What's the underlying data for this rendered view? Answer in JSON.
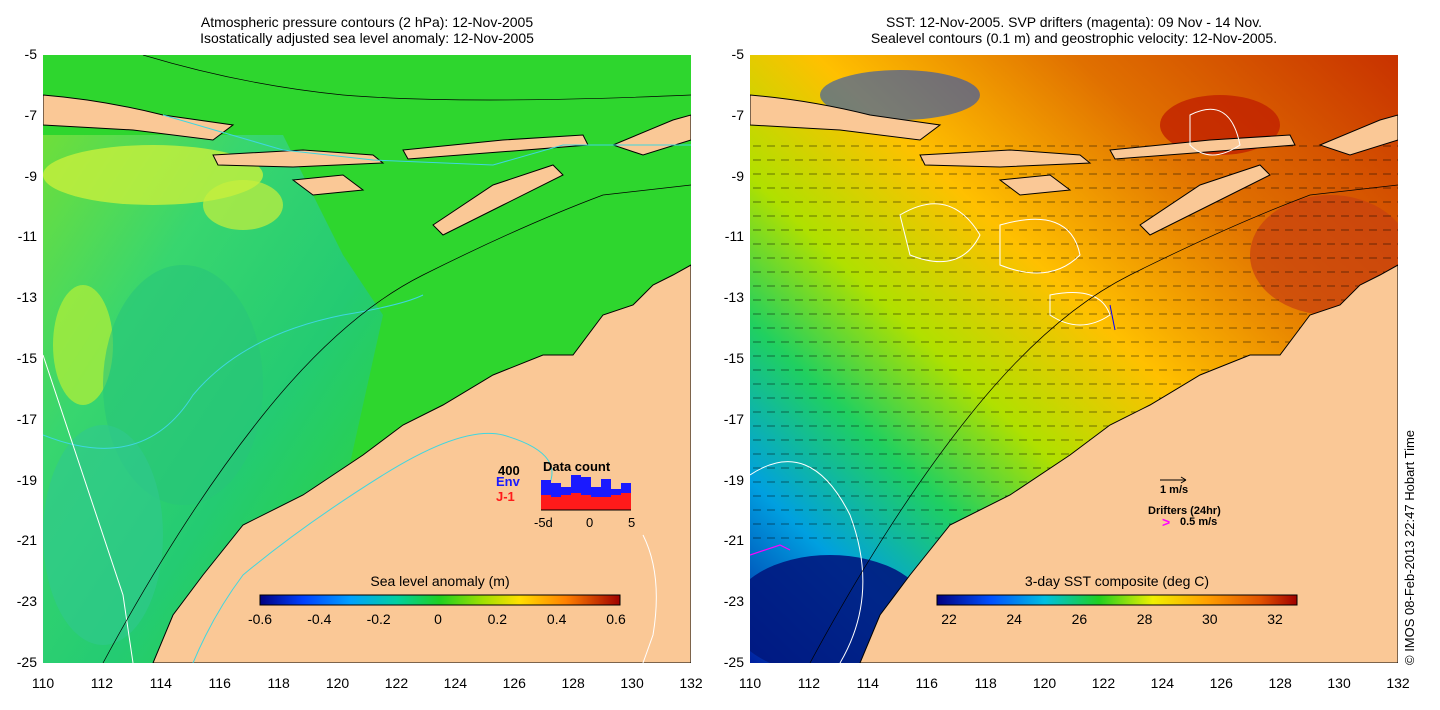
{
  "left_panel": {
    "title_line1": "Atmospheric pressure contours (2 hPa): 12-Nov-2005",
    "title_line2": "Isostatically adjusted sea level anomaly: 12-Nov-2005",
    "colorbar": {
      "label": "Sea level anomaly (m)",
      "ticks": [
        "-0.6",
        "-0.4",
        "-0.2",
        "0",
        "0.2",
        "0.4",
        "0.6"
      ]
    },
    "inset": {
      "title": "Data count",
      "ymax": "400",
      "env_label": "Env",
      "j1_label": "J-1",
      "xticks": [
        "-5d",
        "0",
        "5"
      ],
      "env_colour": "#1a1aff",
      "j1_colour": "#ff1a1a"
    }
  },
  "right_panel": {
    "title_line1": "SST: 12-Nov-2005. SVP drifters (magenta): 09 Nov - 14 Nov.",
    "title_line2": "Sealevel contours (0.1 m) and geostrophic velocity: 12-Nov-2005.",
    "colorbar": {
      "label": "3-day SST composite (deg C)",
      "ticks": [
        "22",
        "24",
        "26",
        "28",
        "30",
        "32"
      ]
    },
    "velocity_key": "1 m/s",
    "drifter_key_title": "Drifters (24hr)",
    "drifter_key_value": "0.5 m/s",
    "drifter_colour": "#ff00ff"
  },
  "axes": {
    "lat_ticks": [
      "-5",
      "-7",
      "-9",
      "-11",
      "-13",
      "-15",
      "-17",
      "-19",
      "-21",
      "-23",
      "-25"
    ],
    "lon_ticks": [
      "110",
      "112",
      "114",
      "116",
      "118",
      "120",
      "122",
      "124",
      "126",
      "128",
      "130",
      "132"
    ]
  },
  "colors": {
    "land": "#fac896",
    "sea_level_ocean": "#2ed62e",
    "contour_cyan": "#3fd6e0"
  },
  "copyright": "© IMOS 08-Feb-2013 22:47 Hobart Time"
}
